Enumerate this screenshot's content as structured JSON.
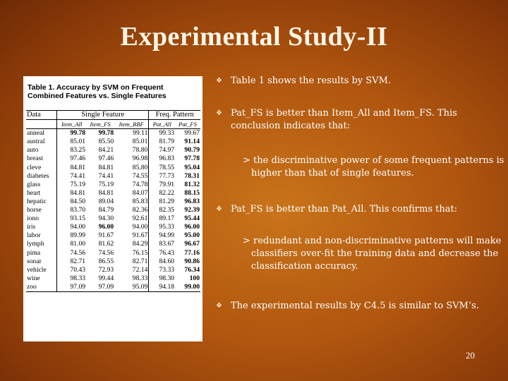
{
  "slide": {
    "title": "Experimental Study-II",
    "page_number": "20"
  },
  "table": {
    "caption": "Table 1. Accuracy by SVM on Frequent Combined Features vs. Single Features",
    "header_data": "Data",
    "header_single": "Single Feature",
    "header_freq": "Freq. Pattern",
    "subheaders": [
      "Item_All",
      "Item_FS",
      "Item_RBF",
      "Pat_All",
      "Pat_FS"
    ],
    "rows": [
      {
        "name": "anneal",
        "v": [
          "99.78",
          "99.78",
          "99.11",
          "99.33",
          "99.67"
        ],
        "bold": [
          true,
          true,
          false,
          false,
          false
        ]
      },
      {
        "name": "austral",
        "v": [
          "85.01",
          "85.50",
          "85.01",
          "81.79",
          "91.14"
        ],
        "bold": [
          false,
          false,
          false,
          false,
          true
        ]
      },
      {
        "name": "auto",
        "v": [
          "83.25",
          "84.21",
          "78.80",
          "74.97",
          "90.79"
        ],
        "bold": [
          false,
          false,
          false,
          false,
          true
        ]
      },
      {
        "name": "breast",
        "v": [
          "97.46",
          "97.46",
          "96.98",
          "96.83",
          "97.78"
        ],
        "bold": [
          false,
          false,
          false,
          false,
          true
        ]
      },
      {
        "name": "cleve",
        "v": [
          "84.81",
          "84.81",
          "85.80",
          "78.55",
          "95.04"
        ],
        "bold": [
          false,
          false,
          false,
          false,
          true
        ]
      },
      {
        "name": "diabetes",
        "v": [
          "74.41",
          "74.41",
          "74.55",
          "77.73",
          "78.31"
        ],
        "bold": [
          false,
          false,
          false,
          false,
          true
        ]
      },
      {
        "name": "glass",
        "v": [
          "75.19",
          "75.19",
          "74.78",
          "79.91",
          "81.32"
        ],
        "bold": [
          false,
          false,
          false,
          false,
          true
        ]
      },
      {
        "name": "heart",
        "v": [
          "84.81",
          "84.81",
          "84.07",
          "82.22",
          "88.15"
        ],
        "bold": [
          false,
          false,
          false,
          false,
          true
        ]
      },
      {
        "name": "hepatic",
        "v": [
          "84.50",
          "89.04",
          "85.83",
          "81.29",
          "96.83"
        ],
        "bold": [
          false,
          false,
          false,
          false,
          true
        ]
      },
      {
        "name": "horse",
        "v": [
          "83.70",
          "84.79",
          "82.36",
          "82.35",
          "92.39"
        ],
        "bold": [
          false,
          false,
          false,
          false,
          true
        ]
      },
      {
        "name": "iono",
        "v": [
          "93.15",
          "94.30",
          "92.61",
          "89.17",
          "95.44"
        ],
        "bold": [
          false,
          false,
          false,
          false,
          true
        ]
      },
      {
        "name": "iris",
        "v": [
          "94.00",
          "96.00",
          "94.00",
          "95.33",
          "96.00"
        ],
        "bold": [
          false,
          true,
          false,
          false,
          true
        ]
      },
      {
        "name": "labor",
        "v": [
          "89.99",
          "91.67",
          "91.67",
          "94.99",
          "95.00"
        ],
        "bold": [
          false,
          false,
          false,
          false,
          true
        ]
      },
      {
        "name": "lymph",
        "v": [
          "81.00",
          "81.62",
          "84.29",
          "83.67",
          "96.67"
        ],
        "bold": [
          false,
          false,
          false,
          false,
          true
        ]
      },
      {
        "name": "pima",
        "v": [
          "74.56",
          "74.56",
          "76.15",
          "76.43",
          "77.16"
        ],
        "bold": [
          false,
          false,
          false,
          false,
          true
        ]
      },
      {
        "name": "sonar",
        "v": [
          "82.71",
          "86.55",
          "82.71",
          "84.60",
          "90.86"
        ],
        "bold": [
          false,
          false,
          false,
          false,
          true
        ]
      },
      {
        "name": "vehicle",
        "v": [
          "70.43",
          "72.93",
          "72.14",
          "73.33",
          "76.34"
        ],
        "bold": [
          false,
          false,
          false,
          false,
          true
        ]
      },
      {
        "name": "wine",
        "v": [
          "98.33",
          "99.44",
          "98.33",
          "98.30",
          "100"
        ],
        "bold": [
          false,
          false,
          false,
          false,
          true
        ]
      },
      {
        "name": "zoo",
        "v": [
          "97.09",
          "97.09",
          "95.09",
          "94.18",
          "99.00"
        ],
        "bold": [
          false,
          false,
          false,
          false,
          true
        ]
      }
    ]
  },
  "bullets": {
    "b1": "Table 1 shows the results by SVM.",
    "b2": "Pat_FS is better than Item_All and Item_FS. This conclusion indicates that:",
    "b2_sub": "> the discriminative power of some frequent patterns is higher than that of single features.",
    "b3": "Pat_FS is better than Pat_All. This confirms that:",
    "b3_sub": "> redundant and non-discriminative patterns will make classifiers over-fit the training data and decrease the classification accuracy.",
    "b4": "The experimental results by C4.5 is similar to SVM’s.",
    "mark": "❖"
  }
}
